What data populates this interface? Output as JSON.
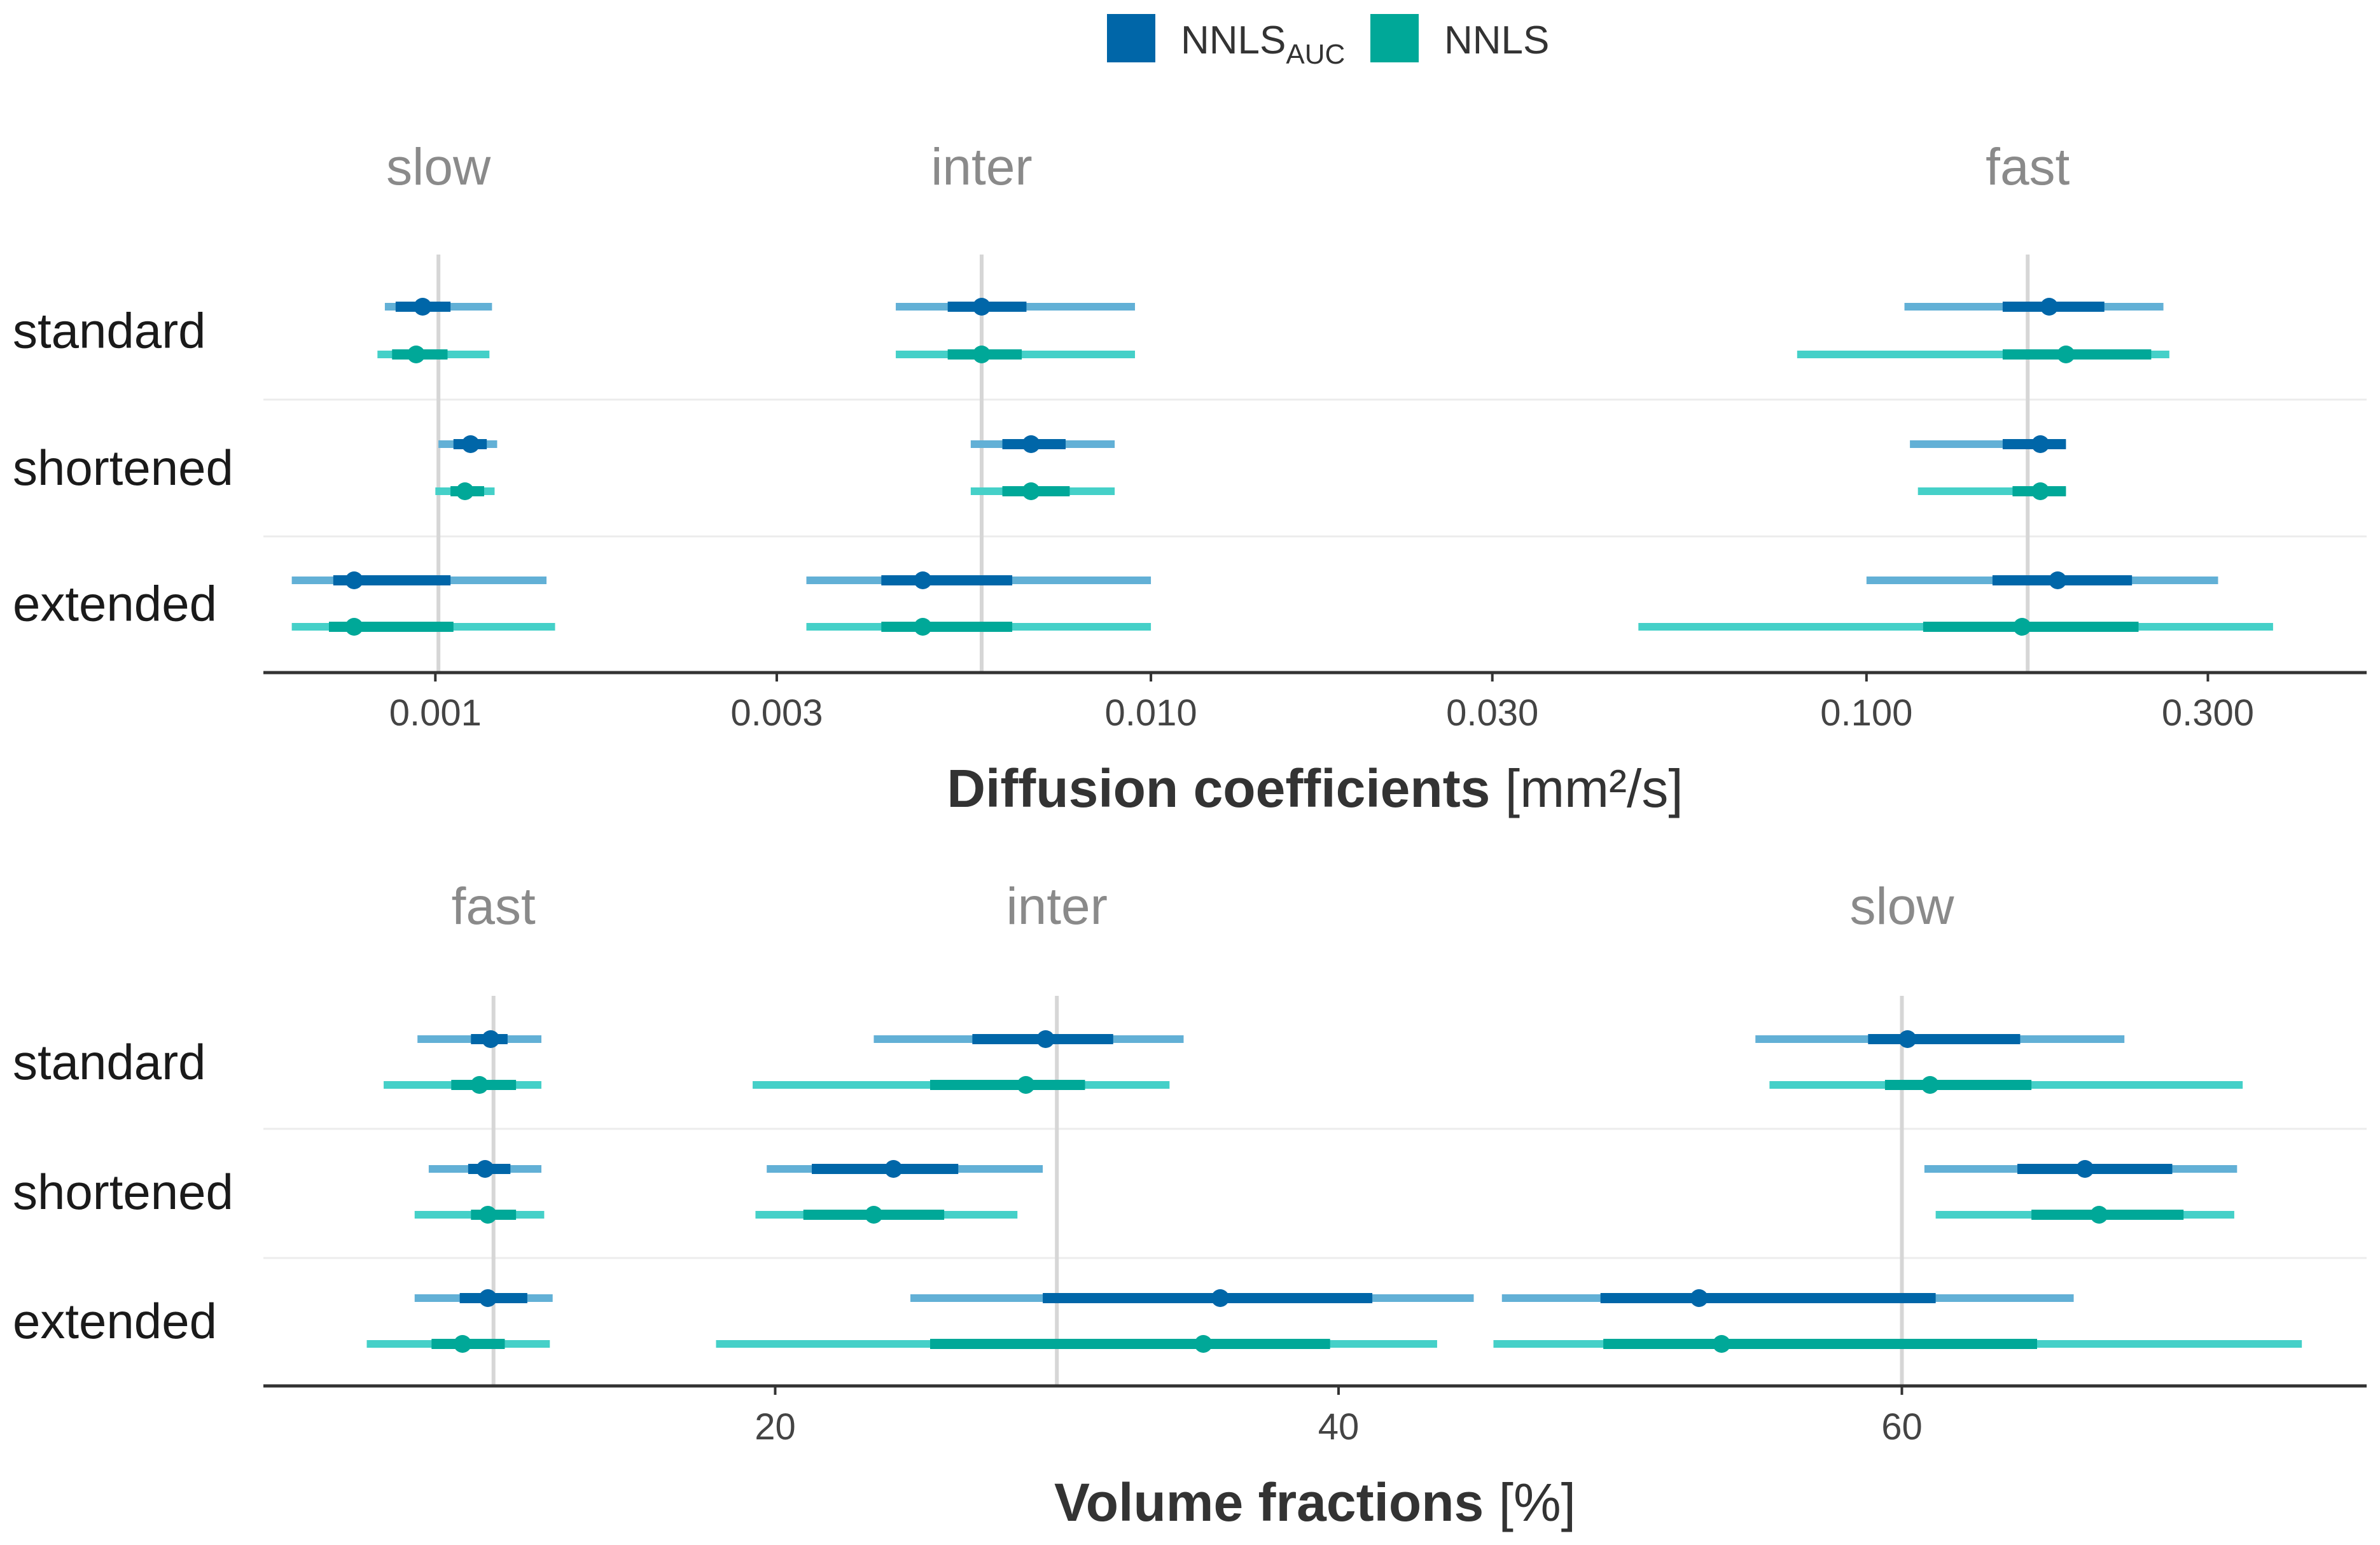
{
  "colors": {
    "nnls_auc": "#0066a8",
    "nnls_auc_light": "#62b0d6",
    "nnls": "#00a898",
    "nnls_light": "#45d0c8",
    "refline": "#d6d6d6",
    "separator": "#ececec",
    "axis": "#333333"
  },
  "legend": {
    "items": [
      {
        "name": "NNLS",
        "sub": "AUC",
        "color": "#0066a8"
      },
      {
        "name": "NNLS",
        "sub": "",
        "color": "#00a898"
      }
    ]
  },
  "chart_data": [
    {
      "type": "forest",
      "title": "Diffusion coefficients",
      "xlabel": "Diffusion coefficients",
      "xunit": "[mm²/s]",
      "xscale": "log10",
      "xlim": [
        0.000575,
        0.5
      ],
      "xticks": [
        0.001,
        0.003,
        0.01,
        0.03,
        0.1,
        0.3
      ],
      "xtick_labels": [
        "0.001",
        "0.003",
        "0.010",
        "0.030",
        "0.100",
        "0.300"
      ],
      "rows": [
        "standard",
        "shortened",
        "extended"
      ],
      "series_names": [
        "NNLS_AUC",
        "NNLS"
      ],
      "panels": [
        {
          "label": "slow",
          "ref": 0.00101,
          "points": {
            "standard": [
              {
                "median": 0.00096,
                "q_low": 0.00088,
                "q_high": 0.00105,
                "low": 0.00085,
                "high": 0.0012
              },
              {
                "median": 0.00094,
                "q_low": 0.00087,
                "q_high": 0.00104,
                "low": 0.00083,
                "high": 0.00119
              }
            ],
            "shortened": [
              {
                "median": 0.00112,
                "q_low": 0.00106,
                "q_high": 0.00118,
                "low": 0.00101,
                "high": 0.00122
              },
              {
                "median": 0.0011,
                "q_low": 0.00105,
                "q_high": 0.00117,
                "low": 0.001,
                "high": 0.00121
              }
            ],
            "extended": [
              {
                "median": 0.00077,
                "q_low": 0.00072,
                "q_high": 0.00105,
                "low": 0.00063,
                "high": 0.00143
              },
              {
                "median": 0.00077,
                "q_low": 0.00071,
                "q_high": 0.00106,
                "low": 0.00063,
                "high": 0.00147
              }
            ]
          }
        },
        {
          "label": "inter",
          "ref": 0.0058,
          "points": {
            "standard": [
              {
                "median": 0.0058,
                "q_low": 0.0052,
                "q_high": 0.0067,
                "low": 0.0044,
                "high": 0.0095
              },
              {
                "median": 0.0058,
                "q_low": 0.0052,
                "q_high": 0.0066,
                "low": 0.0044,
                "high": 0.0095
              }
            ],
            "shortened": [
              {
                "median": 0.0068,
                "q_low": 0.0062,
                "q_high": 0.0076,
                "low": 0.0056,
                "high": 0.0089
              },
              {
                "median": 0.0068,
                "q_low": 0.0062,
                "q_high": 0.0077,
                "low": 0.0056,
                "high": 0.0089
              }
            ],
            "extended": [
              {
                "median": 0.0048,
                "q_low": 0.0042,
                "q_high": 0.0064,
                "low": 0.0033,
                "high": 0.01
              },
              {
                "median": 0.0048,
                "q_low": 0.0042,
                "q_high": 0.0064,
                "low": 0.0033,
                "high": 0.01
              }
            ]
          }
        },
        {
          "label": "fast",
          "ref": 0.168,
          "points": {
            "standard": [
              {
                "median": 0.18,
                "q_low": 0.155,
                "q_high": 0.215,
                "low": 0.113,
                "high": 0.26
              },
              {
                "median": 0.19,
                "q_low": 0.155,
                "q_high": 0.25,
                "low": 0.08,
                "high": 0.265
              }
            ],
            "shortened": [
              {
                "median": 0.175,
                "q_low": 0.155,
                "q_high": 0.19,
                "low": 0.115,
                "high": 0.19
              },
              {
                "median": 0.175,
                "q_low": 0.16,
                "q_high": 0.19,
                "low": 0.118,
                "high": 0.19
              }
            ],
            "extended": [
              {
                "median": 0.185,
                "q_low": 0.15,
                "q_high": 0.235,
                "low": 0.1,
                "high": 0.31
              },
              {
                "median": 0.165,
                "q_low": 0.12,
                "q_high": 0.24,
                "low": 0.048,
                "high": 0.37
              }
            ]
          }
        }
      ]
    },
    {
      "type": "forest",
      "title": "Volume fractions",
      "xlabel": "Volume fractions",
      "xunit": "[%]",
      "xscale": "linear",
      "xlim": [
        1.83,
        76.5
      ],
      "xticks": [
        20,
        40,
        60
      ],
      "xtick_labels": [
        "20",
        "40",
        "60"
      ],
      "rows": [
        "standard",
        "shortened",
        "extended"
      ],
      "series_names": [
        "NNLS_AUC",
        "NNLS"
      ],
      "panels": [
        {
          "label": "fast",
          "ref": 10,
          "points": {
            "standard": [
              {
                "median": 9.9,
                "q_low": 9.2,
                "q_high": 10.5,
                "low": 7.3,
                "high": 11.7
              },
              {
                "median": 9.5,
                "q_low": 8.5,
                "q_high": 10.8,
                "low": 6.1,
                "high": 11.7
              }
            ],
            "shortened": [
              {
                "median": 9.7,
                "q_low": 9.1,
                "q_high": 10.6,
                "low": 7.7,
                "high": 11.7
              },
              {
                "median": 9.8,
                "q_low": 9.2,
                "q_high": 10.8,
                "low": 7.2,
                "high": 11.8
              }
            ],
            "extended": [
              {
                "median": 9.8,
                "q_low": 8.8,
                "q_high": 11.2,
                "low": 7.2,
                "high": 12.1
              },
              {
                "median": 8.9,
                "q_low": 7.8,
                "q_high": 10.4,
                "low": 5.5,
                "high": 12
              }
            ]
          }
        },
        {
          "label": "inter",
          "ref": 30,
          "points": {
            "standard": [
              {
                "median": 29.6,
                "q_low": 27,
                "q_high": 32,
                "low": 23.5,
                "high": 34.5
              },
              {
                "median": 28.9,
                "q_low": 25.5,
                "q_high": 31,
                "low": 19.2,
                "high": 34
              }
            ],
            "shortened": [
              {
                "median": 24.2,
                "q_low": 21.3,
                "q_high": 26.5,
                "low": 19.7,
                "high": 29.5
              },
              {
                "median": 23.5,
                "q_low": 21,
                "q_high": 26,
                "low": 19.3,
                "high": 28.6
              }
            ],
            "extended": [
              {
                "median": 35.8,
                "q_low": 29.5,
                "q_high": 41.2,
                "low": 24.8,
                "high": 44.8
              },
              {
                "median": 35.2,
                "q_low": 25.5,
                "q_high": 39.7,
                "low": 17.9,
                "high": 43.5
              }
            ]
          }
        },
        {
          "label": "slow",
          "ref": 60,
          "points": {
            "standard": [
              {
                "median": 60.2,
                "q_low": 58.8,
                "q_high": 64.2,
                "low": 54.8,
                "high": 67.9
              },
              {
                "median": 61,
                "q_low": 59.4,
                "q_high": 64.6,
                "low": 55.3,
                "high": 72.1
              }
            ],
            "shortened": [
              {
                "median": 66.5,
                "q_low": 64.1,
                "q_high": 69.6,
                "low": 60.8,
                "high": 71.9
              },
              {
                "median": 67,
                "q_low": 64.6,
                "q_high": 70,
                "low": 61.2,
                "high": 71.8
              }
            ],
            "extended": [
              {
                "median": 52.8,
                "q_low": 49.3,
                "q_high": 61.2,
                "low": 45.8,
                "high": 66.1
              },
              {
                "median": 53.6,
                "q_low": 49.4,
                "q_high": 64.8,
                "low": 45.5,
                "high": 74.2
              }
            ]
          }
        }
      ]
    }
  ]
}
